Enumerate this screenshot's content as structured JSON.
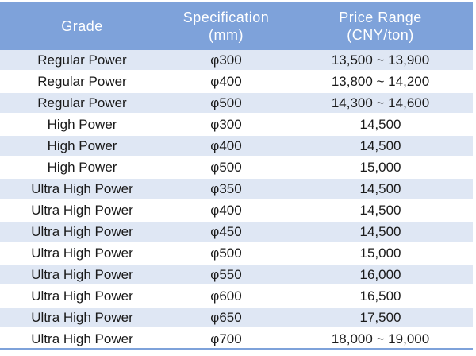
{
  "header": {
    "grade": "Grade",
    "spec_line1": "Specification",
    "spec_line2": "(mm)",
    "price_line1": "Price Range",
    "price_line2": "(CNY/ton)"
  },
  "rows": [
    {
      "grade": "Regular Power",
      "spec": "φ300",
      "price": "13,500 ~ 13,900"
    },
    {
      "grade": "Regular Power",
      "spec": "φ400",
      "price": "13,800 ~ 14,200"
    },
    {
      "grade": "Regular Power",
      "spec": "φ500",
      "price": "14,300 ~ 14,600"
    },
    {
      "grade": "High Power",
      "spec": "φ300",
      "price": "14,500"
    },
    {
      "grade": "High Power",
      "spec": "φ400",
      "price": "14,500"
    },
    {
      "grade": "High Power",
      "spec": "φ500",
      "price": "15,000"
    },
    {
      "grade": "Ultra High Power",
      "spec": "φ350",
      "price": "14,500"
    },
    {
      "grade": "Ultra High Power",
      "spec": "φ400",
      "price": "14,500"
    },
    {
      "grade": "Ultra High Power",
      "spec": "φ450",
      "price": "14,500"
    },
    {
      "grade": "Ultra High Power",
      "spec": "φ500",
      "price": "15,000"
    },
    {
      "grade": "Ultra High Power",
      "spec": "φ550",
      "price": "16,000"
    },
    {
      "grade": "Ultra High Power",
      "spec": "φ600",
      "price": "16,500"
    },
    {
      "grade": "Ultra High Power",
      "spec": "φ650",
      "price": "17,500"
    },
    {
      "grade": "Ultra High Power",
      "spec": "φ700",
      "price": "18,000 ~ 19,000"
    }
  ],
  "colors": {
    "header_bg": "#7ea2da",
    "stripe_bg": "#dfe7f4",
    "text": "#1a1a1a"
  }
}
